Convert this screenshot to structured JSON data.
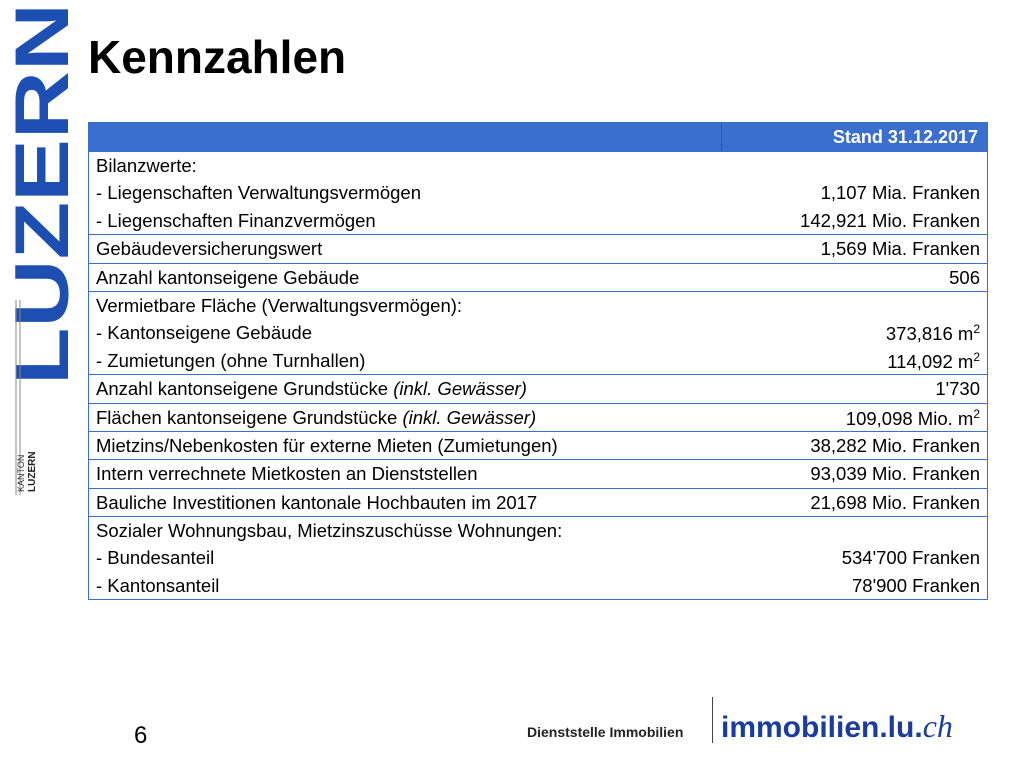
{
  "logo": {
    "text": "LUZERN",
    "small_top": "KANTON",
    "small_bottom": "LUZERN"
  },
  "header": {
    "title": "Kennzahlen"
  },
  "table": {
    "heading": "Stand 31.12.2017",
    "rows": [
      {
        "lines": [
          {
            "left": "Bilanzwerte:"
          },
          {
            "left": "- Liegenschaften Verwaltungsvermögen",
            "right": "1,107 Mia. Franken"
          },
          {
            "left": "- Liegenschaften Finanzvermögen",
            "right": "142,921 Mio. Franken"
          }
        ]
      },
      {
        "lines": [
          {
            "left": "Gebäudeversicherungswert",
            "right": "1,569 Mia. Franken"
          }
        ]
      },
      {
        "lines": [
          {
            "left": "Anzahl kantonseigene Gebäude",
            "right": "506"
          }
        ]
      },
      {
        "lines": [
          {
            "left": "Vermietbare Fläche (Verwaltungsvermögen):"
          },
          {
            "left": "- Kantonseigene Gebäude",
            "right": "373,816 m",
            "right_sup": "2"
          },
          {
            "left": "- Zumietungen (ohne Turnhallen)",
            "right": "114,092 m",
            "right_sup": "2"
          }
        ]
      },
      {
        "lines": [
          {
            "left": "Anzahl kantonseigene Grundstücke ",
            "left_italic": "(inkl. Gewässer)",
            "right": "1'730"
          }
        ]
      },
      {
        "lines": [
          {
            "left": "Flächen kantonseigene Grundstücke ",
            "left_italic": "(inkl. Gewässer)",
            "right": "109,098 Mio. m",
            "right_sup": "2"
          }
        ]
      },
      {
        "lines": [
          {
            "left": "Mietzins/Nebenkosten für externe Mieten (Zumietungen)",
            "right": "38,282 Mio. Franken"
          }
        ]
      },
      {
        "lines": [
          {
            "left": "Intern verrechnete Mietkosten an Dienststellen",
            "right": "93,039 Mio. Franken"
          }
        ]
      },
      {
        "lines": [
          {
            "left": "Bauliche Investitionen kantonale Hochbauten im 2017",
            "right": "21,698 Mio. Franken"
          }
        ]
      },
      {
        "lines": [
          {
            "left": "Sozialer Wohnungsbau, Mietzinszuschüsse Wohnungen:"
          },
          {
            "left": "- Bundesanteil",
            "right": "534'700 Franken"
          },
          {
            "left": "- Kantonsanteil",
            "right": "78'900 Franken"
          }
        ]
      }
    ]
  },
  "footer": {
    "page": "6",
    "department": "Dienststelle Immobilien",
    "site_main": "immobilien.lu.",
    "site_tld": "ch"
  }
}
